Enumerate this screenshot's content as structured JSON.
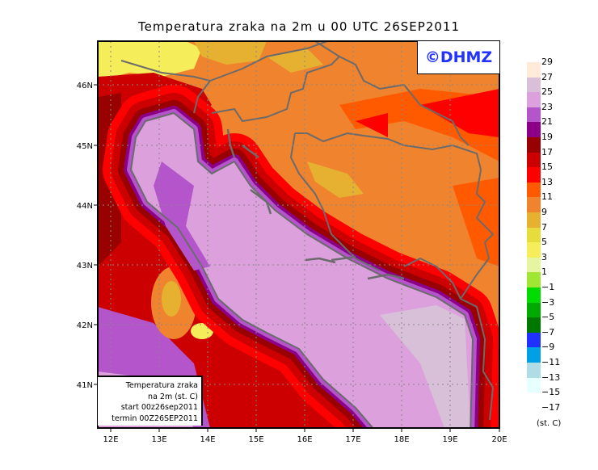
{
  "title": "Temperatura zraka na 2m u 00 UTC 26SEP2011",
  "watermark": "©DHMZ",
  "info_box": [
    "Temperatura zraka",
    "na 2m (st. C)",
    "start 00z26sep2011",
    "termin 00Z26SEP2011"
  ],
  "axes": {
    "lon_labels": [
      "12E",
      "13E",
      "14E",
      "15E",
      "16E",
      "17E",
      "18E",
      "19E",
      "20E"
    ],
    "lat_labels": [
      "46N",
      "45N",
      "44N",
      "43N",
      "42N",
      "41N"
    ]
  },
  "legend": {
    "unit": "(st. C)",
    "labels": [
      "29",
      "27",
      "25",
      "23",
      "21",
      "19",
      "17",
      "15",
      "13",
      "11",
      "9",
      "7",
      "5",
      "3",
      "1",
      "−1",
      "−3",
      "−5",
      "−7",
      "−9",
      "−11",
      "−13",
      "−15",
      "−17"
    ],
    "colors": [
      "#ffebd8",
      "#d8c0d8",
      "#dca0dc",
      "#b455cc",
      "#8b0087",
      "#990000",
      "#cc0000",
      "#ff0000",
      "#ff5a00",
      "#f0832d",
      "#e6b030",
      "#e6dc3c",
      "#f5ee5a",
      "#e6f5a0",
      "#a0e632",
      "#00dc00",
      "#00aa00",
      "#007800",
      "#2030ff",
      "#00a0e6",
      "#b0dce6",
      "#e6ffff",
      "#ffffff"
    ]
  }
}
